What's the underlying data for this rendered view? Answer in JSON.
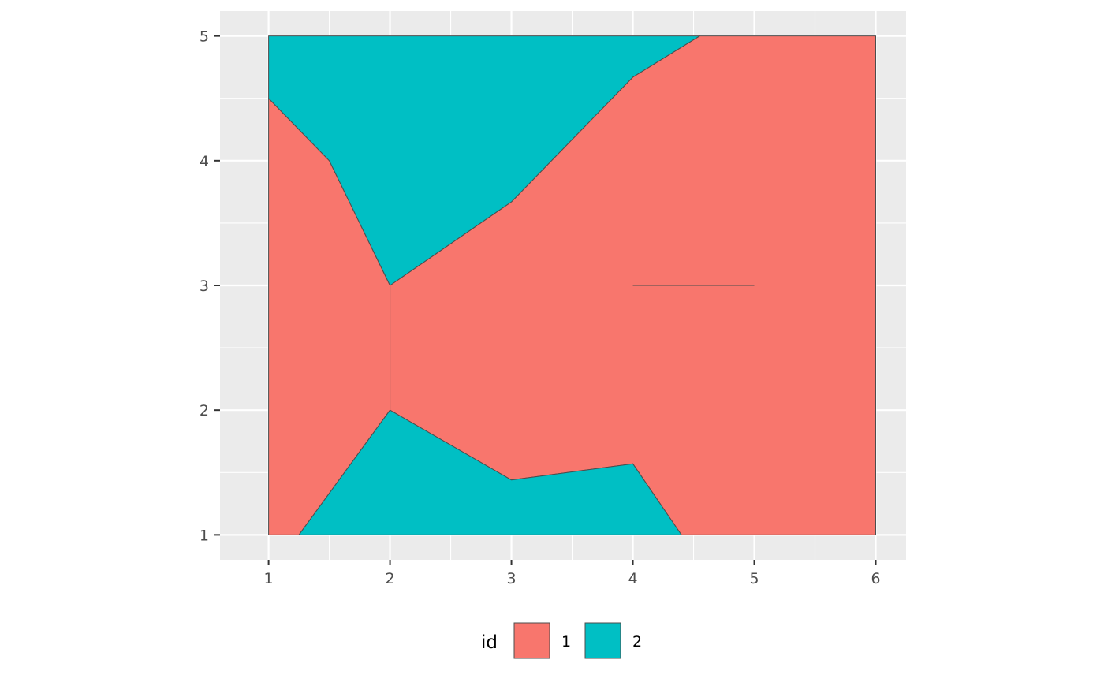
{
  "chart_data": {
    "type": "polygon-map",
    "title": "",
    "xlabel": "",
    "ylabel": "",
    "xlim": [
      0.6,
      6.25
    ],
    "ylim": [
      0.8,
      5.2
    ],
    "x_ticks": [
      1,
      2,
      3,
      4,
      5,
      6
    ],
    "y_ticks": [
      1,
      2,
      3,
      4,
      5
    ],
    "grid": true,
    "legend": {
      "title": "id",
      "placement": "bottom",
      "entries": [
        {
          "label": "1",
          "color": "#F8766D"
        },
        {
          "label": "2",
          "color": "#00BFC4"
        }
      ]
    },
    "series": [
      {
        "name": "1",
        "color": "#F8766D",
        "polygons": [
          [
            [
              1,
              1
            ],
            [
              6,
              1
            ],
            [
              6,
              5
            ],
            [
              4.55,
              5
            ],
            [
              4,
              4.67
            ],
            [
              3,
              3.67
            ],
            [
              2,
              3
            ],
            [
              2,
              2
            ],
            [
              3,
              1.44
            ],
            [
              4,
              1.57
            ],
            [
              4.4,
              1
            ],
            [
              1.25,
              1
            ],
            [
              2,
              2
            ],
            [
              2,
              3
            ],
            [
              1.5,
              4
            ],
            [
              1,
              4.5
            ]
          ]
        ]
      },
      {
        "name": "2",
        "color": "#00BFC4",
        "polygons": [
          [
            [
              1,
              5
            ],
            [
              4.55,
              5
            ],
            [
              4,
              4.67
            ],
            [
              3,
              3.67
            ],
            [
              2,
              3
            ],
            [
              1.5,
              4
            ],
            [
              1,
              4.5
            ]
          ],
          [
            [
              1.25,
              1
            ],
            [
              2,
              2
            ],
            [
              3,
              1.44
            ],
            [
              4,
              1.57
            ],
            [
              4.4,
              1
            ]
          ]
        ]
      }
    ],
    "segments": [
      [
        [
          4,
          3
        ],
        [
          5,
          3
        ]
      ]
    ],
    "colors": {
      "panel_background": "#EBEBEB",
      "grid": "#FFFFFF",
      "outline": "#4D4D4D"
    }
  }
}
